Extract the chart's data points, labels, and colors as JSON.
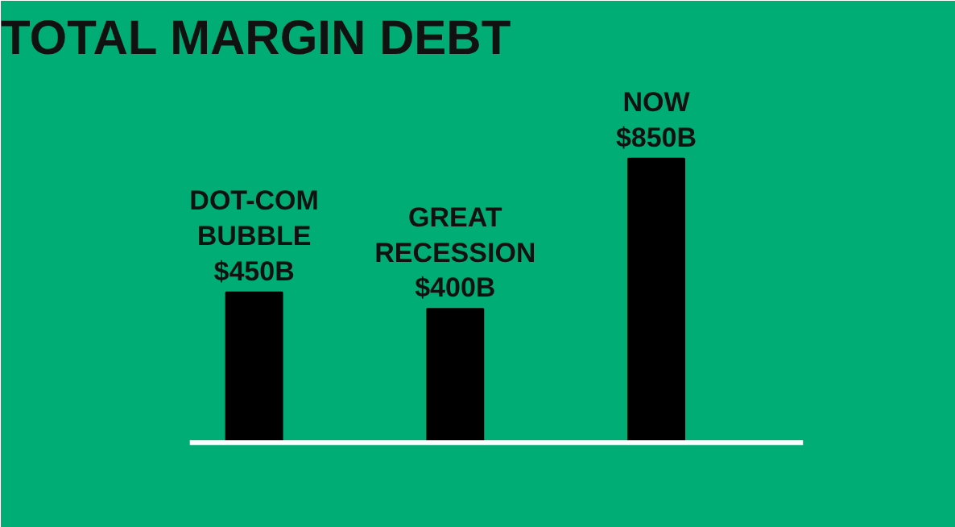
{
  "chart_data": {
    "type": "bar",
    "title": "TOTAL MARGIN DEBT",
    "categories": [
      "DOT-COM BUBBLE",
      "GREAT RECESSION",
      "NOW"
    ],
    "values": [
      450,
      400,
      850
    ],
    "color": "#000000",
    "value_labels": [
      "$450B",
      "$400B",
      "$850B"
    ],
    "grid": false
  }
}
